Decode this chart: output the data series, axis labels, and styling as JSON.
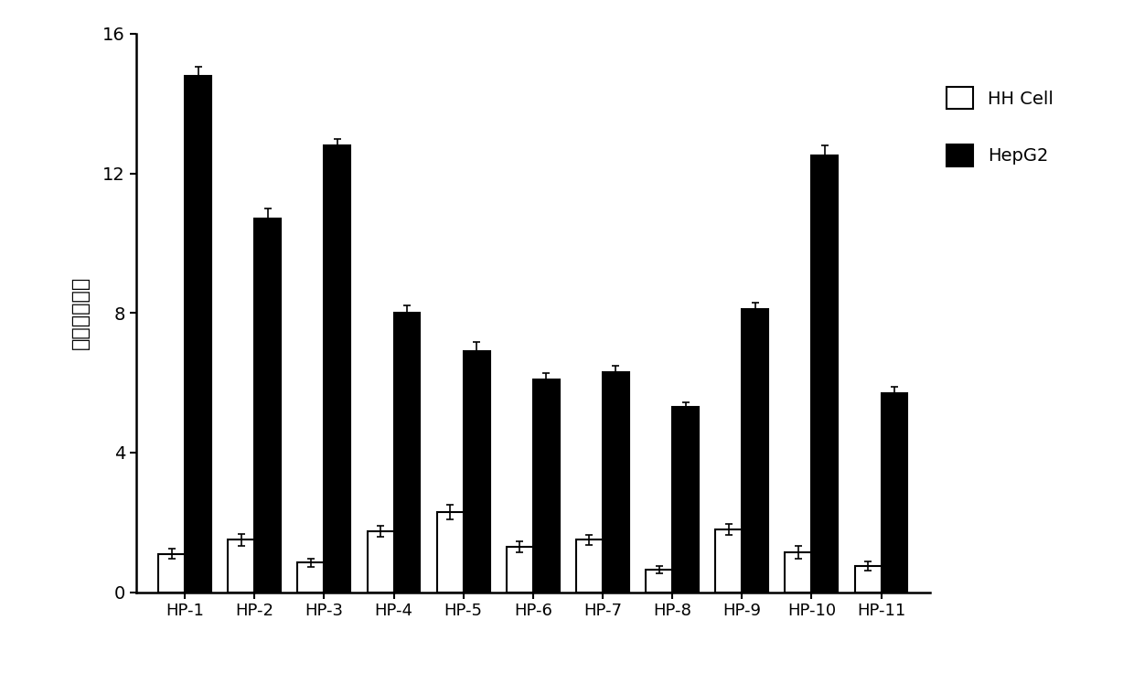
{
  "categories": [
    "HP-1",
    "HP-2",
    "HP-3",
    "HP-4",
    "HP-5",
    "HP-6",
    "HP-7",
    "HP-8",
    "HP-9",
    "HP-10",
    "HP-11"
  ],
  "hh_cell_values": [
    1.1,
    1.5,
    0.85,
    1.75,
    2.3,
    1.3,
    1.5,
    0.65,
    1.8,
    1.15,
    0.75
  ],
  "hepg2_values": [
    14.8,
    10.7,
    12.8,
    8.0,
    6.9,
    6.1,
    6.3,
    5.3,
    8.1,
    12.5,
    5.7
  ],
  "hh_cell_errors": [
    0.15,
    0.18,
    0.12,
    0.15,
    0.2,
    0.15,
    0.15,
    0.1,
    0.15,
    0.18,
    0.12
  ],
  "hepg2_errors": [
    0.25,
    0.28,
    0.18,
    0.22,
    0.28,
    0.18,
    0.2,
    0.15,
    0.2,
    0.3,
    0.18
  ],
  "ylabel": "相对识别能力",
  "ylim": [
    0,
    16
  ],
  "yticks": [
    0,
    4,
    8,
    12,
    16
  ],
  "bar_width": 0.38,
  "hh_cell_color": "#ffffff",
  "hh_cell_edgecolor": "#000000",
  "hepg2_color": "#000000",
  "hepg2_edgecolor": "#000000",
  "legend_hh_cell": "HH Cell",
  "legend_hepg2": "HepG2",
  "background_color": "#ffffff",
  "figsize": [
    12.4,
    7.36
  ],
  "dpi": 100
}
